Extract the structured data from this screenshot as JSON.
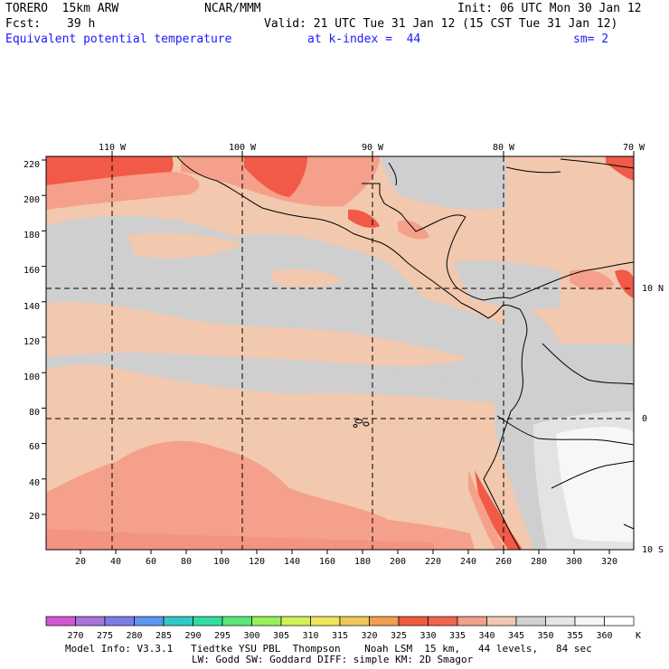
{
  "header": {
    "model": "TORERO  15km ARW",
    "center": "NCAR/MMM",
    "init": "Init: 06 UTC Mon 30 Jan 12",
    "fcst_label": "Fcst:",
    "fcst_value": "39 h",
    "valid": "Valid: 21 UTC Tue 31 Jan 12 (15 CST Tue 31 Jan 12)",
    "field": "Equivalent potential temperature",
    "level": "at k-index =  44",
    "smooth": "sm= 2"
  },
  "map": {
    "lon_labels": [
      "110 W",
      "100 W",
      "90 W",
      "80 W",
      "70 W"
    ],
    "lat_labels": [
      "10 N",
      "0",
      "10 S"
    ],
    "y_ticks": [
      "20",
      "40",
      "60",
      "80",
      "100",
      "120",
      "140",
      "160",
      "180",
      "200",
      "220"
    ],
    "x_ticks": [
      "20",
      "40",
      "60",
      "80",
      "100",
      "120",
      "140",
      "160",
      "180",
      "200",
      "220",
      "240",
      "260",
      "280",
      "300",
      "320"
    ]
  },
  "colorbar": {
    "labels": [
      "270",
      "275",
      "280",
      "285",
      "290",
      "295",
      "300",
      "305",
      "310",
      "315",
      "320",
      "325",
      "330",
      "335",
      "340",
      "345",
      "350",
      "355",
      "360"
    ],
    "unit": "K",
    "colors": [
      "#d257d2",
      "#a874dc",
      "#7d7de6",
      "#5a96f0",
      "#32c8c8",
      "#32dca0",
      "#5ae678",
      "#96f05a",
      "#d2f05a",
      "#f0e65a",
      "#f0c85a",
      "#f0a050",
      "#f05a3c",
      "#f06450",
      "#f0a08c",
      "#f0c8b4",
      "#d2d2d2",
      "#e6e6e6",
      "#f5f5f5",
      "#ffffff"
    ]
  },
  "footer": {
    "line1": "Model Info: V3.3.1   Tiedtke YSU PBL  Thompson    Noah LSM  15 km,   44 levels,   84 sec",
    "line2": "LW: Godd SW: Goddard DIFF: simple KM: 2D Smagor"
  },
  "colors": {
    "light_orange": "#f2c8ae",
    "gray": "#cfcfcf",
    "salmon": "#f5a08a",
    "red": "#f05a46",
    "light_gray": "#e3e3e3",
    "white": "#f7f7f7",
    "header_blue": "#1a1aff"
  }
}
